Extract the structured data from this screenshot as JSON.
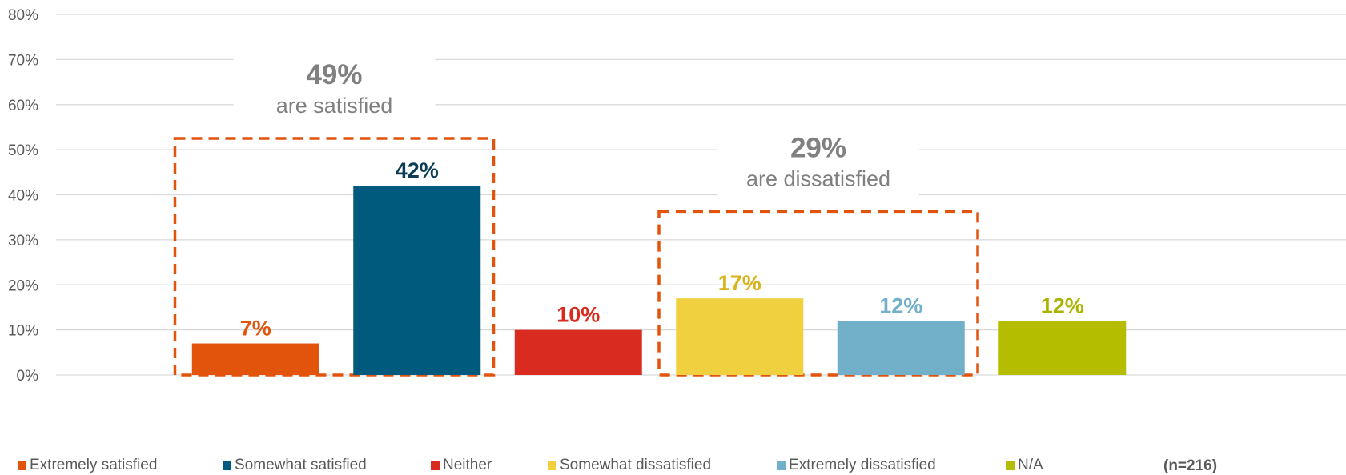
{
  "chart_data": {
    "type": "bar",
    "categories": [
      "Extremely satisfied",
      "Somewhat satisfied",
      "Neither",
      "Somewhat dissatisfied",
      "Extremely dissatisfied",
      "N/A"
    ],
    "values": [
      7,
      42,
      10,
      17,
      12,
      12
    ],
    "data_labels": [
      "7%",
      "42%",
      "10%",
      "17%",
      "12%",
      "12%"
    ],
    "colors": [
      "#e2530c",
      "#005a7e",
      "#d92b20",
      "#f0d03f",
      "#72b0c9",
      "#b5bd00"
    ],
    "label_colors": [
      "#e2530c",
      "#0d3d56",
      "#d92b20",
      "#d9b21c",
      "#72b0c9",
      "#aab300"
    ],
    "ylim": [
      0,
      80
    ],
    "yticks": [
      0,
      10,
      20,
      30,
      40,
      50,
      60,
      70,
      80
    ],
    "ytick_labels": [
      "0%",
      "10%",
      "20%",
      "30%",
      "40%",
      "50%",
      "60%",
      "70%",
      "80%"
    ],
    "grid": true,
    "legend_position": "bottom",
    "groups": [
      {
        "percent": "49%",
        "text": "are satisfied",
        "members": [
          0,
          1
        ],
        "box_top_value": 52.5
      },
      {
        "percent": "29%",
        "text": "are dissatisfied",
        "members": [
          3,
          4
        ],
        "box_top_value": 36.3
      }
    ],
    "box_color": "#e2530c",
    "annotation_color": "#808080",
    "sample_size": "(n=216)"
  }
}
